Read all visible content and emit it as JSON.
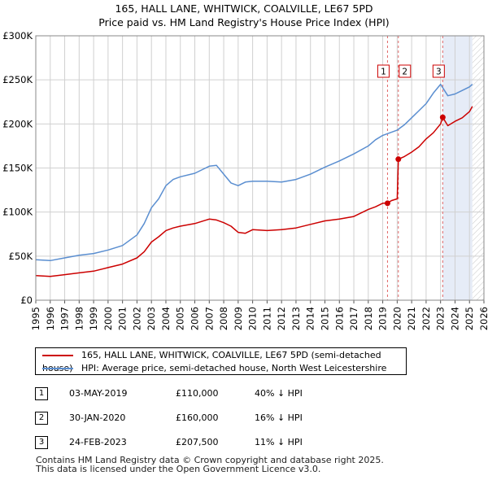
{
  "title": {
    "line1": "165, HALL LANE, WHITWICK, COALVILLE, LE67 5PD",
    "line2": "Price paid vs. HM Land Registry's House Price Index (HPI)"
  },
  "chart_data": {
    "type": "line",
    "title": "165, HALL LANE, WHITWICK, COALVILLE, LE67 5PD — Price paid vs. HM Land Registry's House Price Index (HPI)",
    "xlabel": "",
    "ylabel": "",
    "xlim": [
      1995,
      2026
    ],
    "ylim": [
      0,
      300000
    ],
    "x_ticks": [
      "1995",
      "1996",
      "1997",
      "1998",
      "1999",
      "2000",
      "2001",
      "2002",
      "2003",
      "2004",
      "2005",
      "2006",
      "2007",
      "2008",
      "2009",
      "2010",
      "2011",
      "2012",
      "2013",
      "2014",
      "2015",
      "2016",
      "2017",
      "2018",
      "2019",
      "2020",
      "2021",
      "2022",
      "2023",
      "2024",
      "2025",
      "2026"
    ],
    "y_ticks": [
      {
        "value": 0,
        "label": "£0"
      },
      {
        "value": 50000,
        "label": "£50K"
      },
      {
        "value": 100000,
        "label": "£100K"
      },
      {
        "value": 150000,
        "label": "£150K"
      },
      {
        "value": 200000,
        "label": "£200K"
      },
      {
        "value": 250000,
        "label": "£250K"
      },
      {
        "value": 300000,
        "label": "£300K"
      }
    ],
    "grid": true,
    "hatched_region": {
      "from": 2025.2,
      "to": 2026
    },
    "shaded_region": {
      "from": 2023.15,
      "to": 2025.2
    },
    "series": [
      {
        "name": "165, HALL LANE, WHITWICK, COALVILLE, LE67 5PD (semi-detached house)",
        "color": "#cc0000",
        "x": [
          1995,
          1996,
          1997,
          1998,
          1999,
          2000,
          2001,
          2002,
          2002.5,
          2003,
          2003.5,
          2004,
          2004.5,
          2005,
          2006,
          2007,
          2007.5,
          2008,
          2008.5,
          2009,
          2009.5,
          2010,
          2011,
          2012,
          2013,
          2014,
          2015,
          2016,
          2017,
          2018,
          2018.5,
          2019,
          2019.33,
          2019.6,
          2020.0,
          2020.08,
          2020.5,
          2021,
          2021.5,
          2022,
          2022.5,
          2023.0,
          2023.15,
          2023.5,
          2024,
          2024.5,
          2025,
          2025.2
        ],
        "y": [
          28000,
          27000,
          29000,
          31000,
          33000,
          37000,
          41000,
          48000,
          55000,
          66000,
          72000,
          79000,
          82000,
          84000,
          87000,
          92000,
          91000,
          88000,
          84000,
          77000,
          76000,
          80000,
          79000,
          80000,
          82000,
          86000,
          90000,
          92000,
          95000,
          103000,
          106000,
          110000,
          110000,
          113000,
          115000,
          160000,
          163000,
          168000,
          174000,
          183000,
          190000,
          200000,
          207500,
          198000,
          203000,
          207000,
          214000,
          220000
        ]
      },
      {
        "name": "HPI: Average price, semi-detached house, North West Leicestershire",
        "color": "#5a8ed0",
        "x": [
          1995,
          1996,
          1997,
          1998,
          1999,
          2000,
          2001,
          2002,
          2002.5,
          2003,
          2003.5,
          2004,
          2004.5,
          2005,
          2006,
          2007,
          2007.5,
          2008,
          2008.5,
          2009,
          2009.5,
          2010,
          2011,
          2012,
          2013,
          2014,
          2015,
          2016,
          2017,
          2018,
          2018.5,
          2019,
          2019.5,
          2020,
          2020.5,
          2021,
          2021.5,
          2022,
          2022.5,
          2023,
          2023.5,
          2024,
          2024.5,
          2025,
          2025.2
        ],
        "y": [
          46000,
          45000,
          48000,
          51000,
          53000,
          57000,
          62000,
          74000,
          87000,
          105000,
          115000,
          130000,
          137000,
          140000,
          144000,
          152000,
          153000,
          143000,
          133000,
          130000,
          134000,
          135000,
          135000,
          134000,
          137000,
          143000,
          151000,
          158000,
          166000,
          175000,
          182000,
          187000,
          190000,
          193000,
          199000,
          207000,
          215000,
          223000,
          235000,
          245000,
          232000,
          234000,
          238000,
          242000,
          245000
        ]
      }
    ],
    "annotations": [
      {
        "label": "1",
        "x": 2019.33,
        "y": 110000,
        "date": "03-MAY-2019",
        "price": "£110,000",
        "hpi": "40% ↓ HPI"
      },
      {
        "label": "2",
        "x": 2020.08,
        "y": 160000,
        "date": "30-JAN-2020",
        "price": "£160,000",
        "hpi": "16% ↓ HPI"
      },
      {
        "label": "3",
        "x": 2023.15,
        "y": 207500,
        "date": "24-FEB-2023",
        "price": "£207,500",
        "hpi": "11% ↓ HPI"
      }
    ]
  },
  "footer": {
    "line1": "Contains HM Land Registry data © Crown copyright and database right 2025.",
    "line2": "This data is licensed under the Open Government Licence v3.0."
  }
}
